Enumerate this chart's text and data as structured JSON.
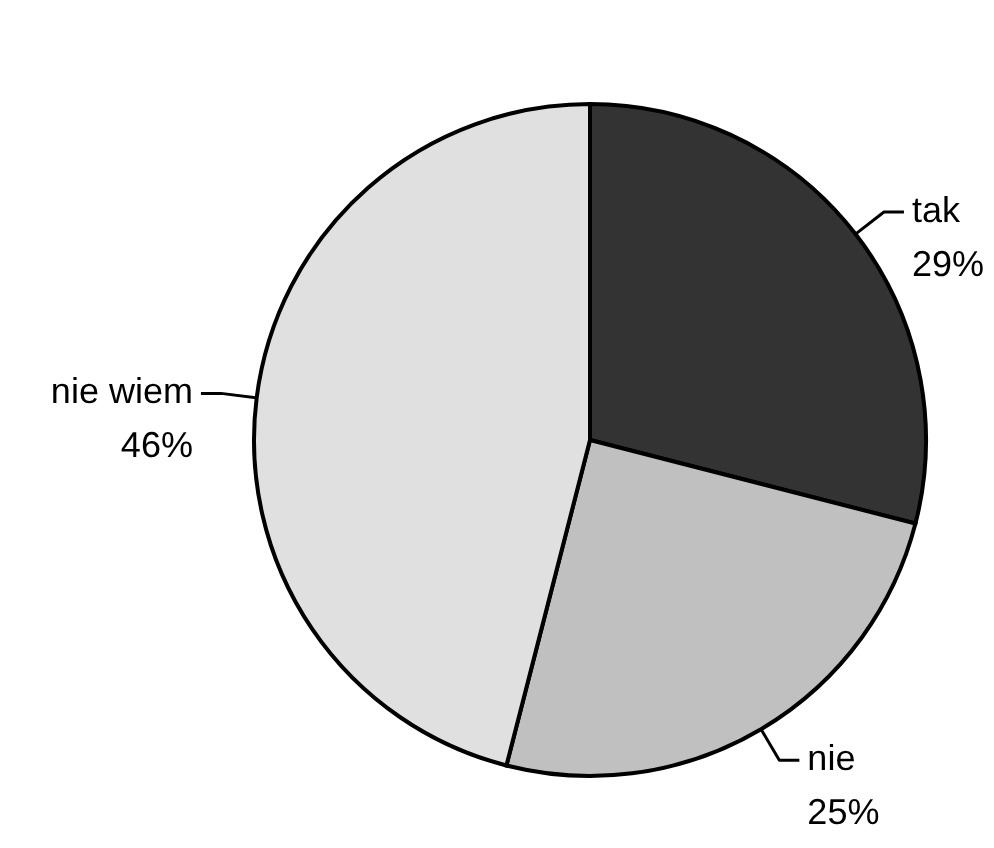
{
  "chart_data": {
    "type": "pie",
    "categories": [
      "tak",
      "nie",
      "nie wiem"
    ],
    "values": [
      29,
      25,
      46
    ],
    "value_labels": [
      "29%",
      "25%",
      "46%"
    ],
    "colors": [
      "#333333",
      "#c0c0c0",
      "#e0e0e0"
    ]
  }
}
